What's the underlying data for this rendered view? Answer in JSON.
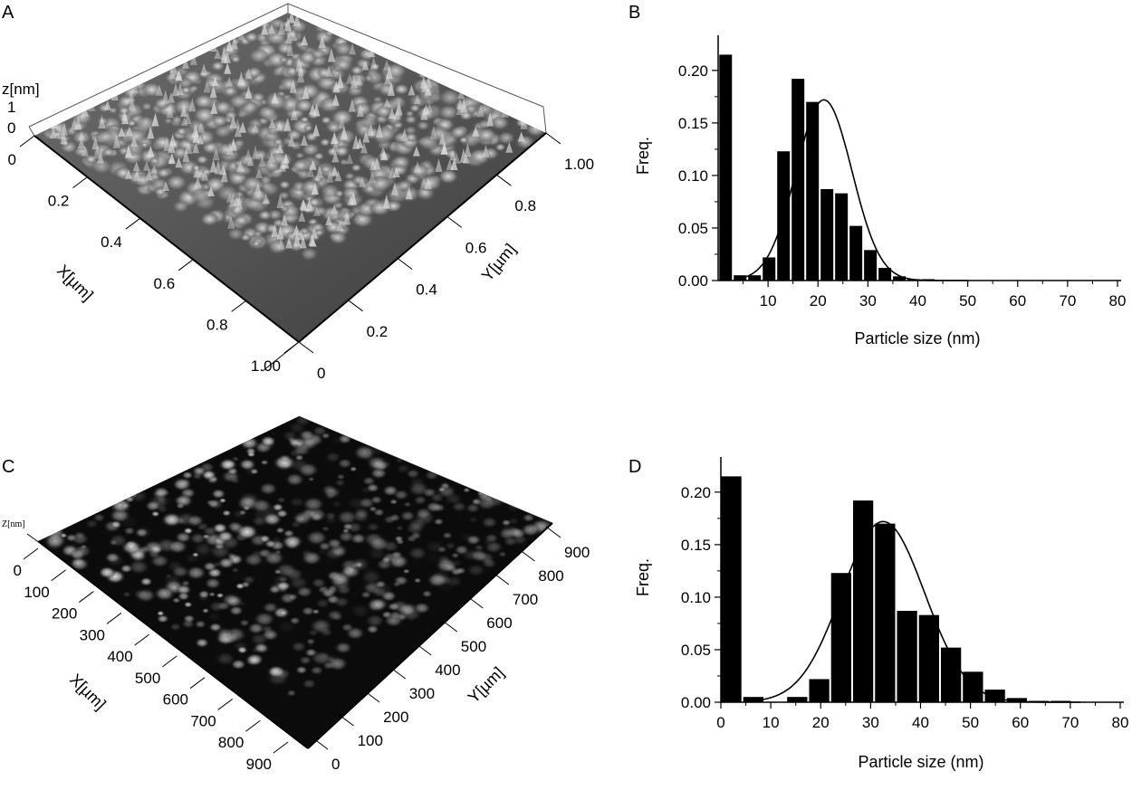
{
  "panels": {
    "A": {
      "label": "A",
      "z_label": "z[nm]",
      "z_ticks": [
        "1",
        "0"
      ],
      "x_label": "X[µm]",
      "y_label": "Y[µm]",
      "x_ticks": [
        "0",
        "0.2",
        "0.4",
        "0.6",
        "0.8",
        "1.00"
      ],
      "y_ticks": [
        "0",
        "0.2",
        "0.4",
        "0.6",
        "0.8",
        "1.00"
      ]
    },
    "C": {
      "label": "C",
      "z_label": "Z[nm]",
      "x_label": "X[µm]",
      "y_label": "Y[µm]",
      "x_ticks": [
        "0",
        "100",
        "200",
        "300",
        "400",
        "500",
        "600",
        "700",
        "800",
        "900"
      ],
      "y_ticks": [
        "0",
        "100",
        "200",
        "300",
        "400",
        "500",
        "600",
        "700",
        "800",
        "900"
      ]
    },
    "B": {
      "label": "B"
    },
    "D": {
      "label": "D"
    }
  },
  "chart_data": [
    {
      "panel": "B",
      "type": "bar",
      "xlabel": "Particle size (nm)",
      "ylabel": "Freq.",
      "xlim": [
        0,
        80
      ],
      "ylim": [
        0,
        0.23
      ],
      "x_ticks": [
        10,
        20,
        30,
        40,
        50,
        60,
        70,
        80
      ],
      "y_ticks": [
        0.0,
        0.05,
        0.1,
        0.15,
        0.2
      ],
      "y_tick_labels": [
        "0.00",
        "0.05",
        "0.10",
        "0.15",
        "0.20"
      ],
      "bin_width": 2.9,
      "bins": [
        1.5,
        4.4,
        7.3,
        10.2,
        13.1,
        16.0,
        18.9,
        21.8,
        24.7,
        27.6,
        30.5,
        33.4,
        36.3,
        39.2,
        42.1,
        45.0,
        47.9
      ],
      "values": [
        0.215,
        0.005,
        0.005,
        0.022,
        0.123,
        0.192,
        0.17,
        0.087,
        0.083,
        0.052,
        0.029,
        0.012,
        0.004,
        0.001,
        0.001,
        0.0,
        0.0
      ],
      "fit": {
        "type": "gaussian",
        "amplitude": 0.172,
        "center": 21.2,
        "sigma": 5.6
      }
    },
    {
      "panel": "D",
      "type": "bar",
      "xlabel": "Particle size (nm)",
      "ylabel": "Freq.",
      "xlim": [
        0,
        80
      ],
      "ylim": [
        0,
        0.23
      ],
      "x_ticks": [
        0,
        10,
        20,
        30,
        40,
        50,
        60,
        70,
        80
      ],
      "y_ticks": [
        0.0,
        0.05,
        0.1,
        0.15,
        0.2
      ],
      "y_tick_labels": [
        "0.00",
        "0.05",
        "0.10",
        "0.15",
        "0.20"
      ],
      "bin_width": 4.4,
      "bins": [
        2.1,
        6.5,
        10.9,
        15.3,
        19.7,
        24.1,
        28.5,
        32.9,
        37.3,
        41.7,
        46.1,
        50.5,
        54.9,
        59.3,
        63.7,
        68.1,
        72.5,
        76.9
      ],
      "values": [
        0.215,
        0.005,
        0.0,
        0.005,
        0.022,
        0.123,
        0.192,
        0.17,
        0.087,
        0.083,
        0.052,
        0.029,
        0.012,
        0.004,
        0.001,
        0.001,
        0.0,
        0.0
      ],
      "fit": {
        "type": "gaussian",
        "amplitude": 0.172,
        "center": 32.5,
        "sigma": 8.3
      }
    }
  ]
}
